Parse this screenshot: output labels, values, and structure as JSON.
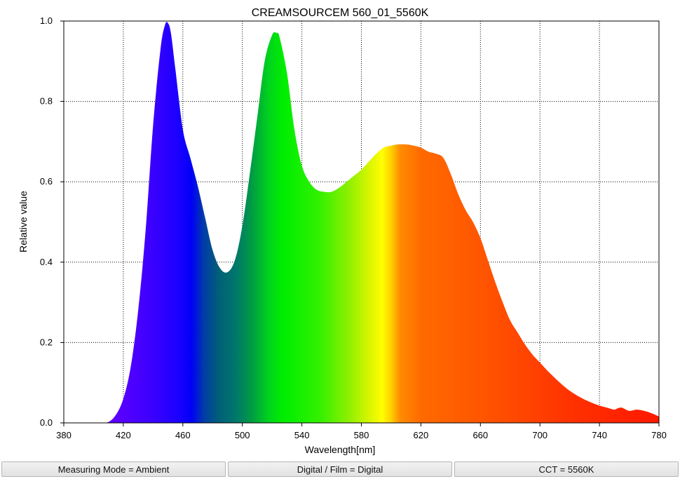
{
  "chart_data": {
    "type": "area",
    "title": "CREAMSOURCEM 560_01_5560K",
    "xlabel": "Wavelength[nm]",
    "ylabel": "Relative value",
    "xlim": [
      380,
      780
    ],
    "ylim": [
      0,
      1.0
    ],
    "x_ticks": [
      380,
      420,
      460,
      500,
      540,
      580,
      620,
      660,
      700,
      740,
      780
    ],
    "x_tick_labels": [
      "380",
      "420",
      "460",
      "500",
      "540",
      "580",
      "620",
      "660",
      "700",
      "740",
      "780"
    ],
    "y_ticks": [
      0,
      0.2,
      0.4,
      0.6,
      0.8,
      1.0
    ],
    "y_tick_labels": [
      "0.0",
      "0.2",
      "0.4",
      "0.6",
      "0.8",
      "1.0"
    ],
    "grid": true,
    "fill": "spectral",
    "series": [
      {
        "x": [
          380,
          400,
          405,
          410,
          415,
          420,
          425,
          430,
          435,
          440,
          445,
          448,
          450,
          452,
          455,
          460,
          465,
          470,
          475,
          480,
          485,
          490,
          495,
          500,
          505,
          510,
          515,
          520,
          523,
          525,
          530,
          535,
          540,
          545,
          550,
          555,
          560,
          565,
          570,
          575,
          580,
          585,
          590,
          595,
          600,
          605,
          610,
          615,
          620,
          625,
          630,
          635,
          640,
          645,
          650,
          655,
          660,
          665,
          670,
          675,
          680,
          685,
          690,
          695,
          700,
          705,
          710,
          715,
          720,
          725,
          730,
          735,
          740,
          745,
          750,
          752,
          755,
          760,
          765,
          770,
          775,
          780
        ],
        "values": [
          0.0,
          0.0,
          0.0,
          0.002,
          0.02,
          0.06,
          0.14,
          0.28,
          0.48,
          0.74,
          0.93,
          0.99,
          0.995,
          0.97,
          0.88,
          0.73,
          0.66,
          0.59,
          0.51,
          0.43,
          0.385,
          0.375,
          0.405,
          0.49,
          0.62,
          0.76,
          0.9,
          0.965,
          0.97,
          0.96,
          0.87,
          0.73,
          0.64,
          0.6,
          0.58,
          0.575,
          0.575,
          0.585,
          0.6,
          0.615,
          0.63,
          0.65,
          0.67,
          0.685,
          0.69,
          0.693,
          0.693,
          0.69,
          0.685,
          0.675,
          0.67,
          0.66,
          0.62,
          0.57,
          0.53,
          0.5,
          0.46,
          0.405,
          0.35,
          0.3,
          0.255,
          0.225,
          0.195,
          0.17,
          0.15,
          0.13,
          0.112,
          0.095,
          0.08,
          0.068,
          0.058,
          0.05,
          0.043,
          0.038,
          0.033,
          0.036,
          0.038,
          0.03,
          0.033,
          0.03,
          0.024,
          0.016
        ]
      }
    ]
  },
  "footer": {
    "measuring_mode": "Measuring Mode = Ambient",
    "digital_film": "Digital / Film = Digital",
    "cct": "CCT = 5560K"
  }
}
